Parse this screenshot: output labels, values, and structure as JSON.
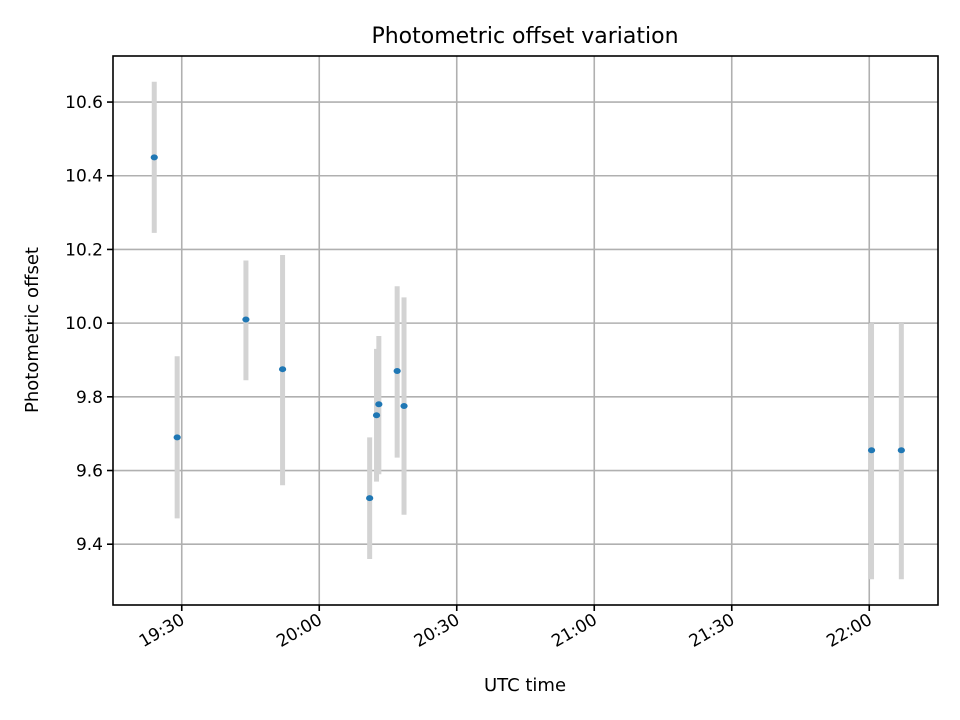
{
  "chart_data": {
    "type": "scatter",
    "title": "Photometric offset variation",
    "xlabel": "UTC time",
    "ylabel": "Photometric offset",
    "x_ticks": [
      "19:30",
      "20:00",
      "20:30",
      "21:00",
      "21:30",
      "22:00"
    ],
    "y_ticks": [
      "9.4",
      "9.6",
      "9.8",
      "10.0",
      "10.2",
      "10.4",
      "10.6"
    ],
    "xlim": [
      "19:15",
      "22:15"
    ],
    "ylim": [
      9.235,
      10.725
    ],
    "grid": true,
    "series": [
      {
        "name": "",
        "color": "#1f77b4",
        "error_color": "#d3d3d3",
        "points": [
          {
            "x": "19:24",
            "y": 10.45,
            "yerr_low": 10.245,
            "yerr_high": 10.655
          },
          {
            "x": "19:29",
            "y": 9.69,
            "yerr_low": 9.47,
            "yerr_high": 9.91
          },
          {
            "x": "19:44",
            "y": 10.01,
            "yerr_low": 9.845,
            "yerr_high": 10.17
          },
          {
            "x": "19:52",
            "y": 9.875,
            "yerr_low": 9.56,
            "yerr_high": 10.185
          },
          {
            "x": "20:11",
            "y": 9.525,
            "yerr_low": 9.36,
            "yerr_high": 9.69
          },
          {
            "x": "20:12.5",
            "y": 9.75,
            "yerr_low": 9.57,
            "yerr_high": 9.93
          },
          {
            "x": "20:13",
            "y": 9.78,
            "yerr_low": 9.59,
            "yerr_high": 9.965
          },
          {
            "x": "20:17",
            "y": 9.87,
            "yerr_low": 9.635,
            "yerr_high": 10.1
          },
          {
            "x": "20:18.5",
            "y": 9.775,
            "yerr_low": 9.48,
            "yerr_high": 10.07
          },
          {
            "x": "22:00.5",
            "y": 9.655,
            "yerr_low": 9.305,
            "yerr_high": 10.0
          },
          {
            "x": "22:07",
            "y": 9.655,
            "yerr_low": 9.305,
            "yerr_high": 10.0
          }
        ]
      }
    ]
  }
}
